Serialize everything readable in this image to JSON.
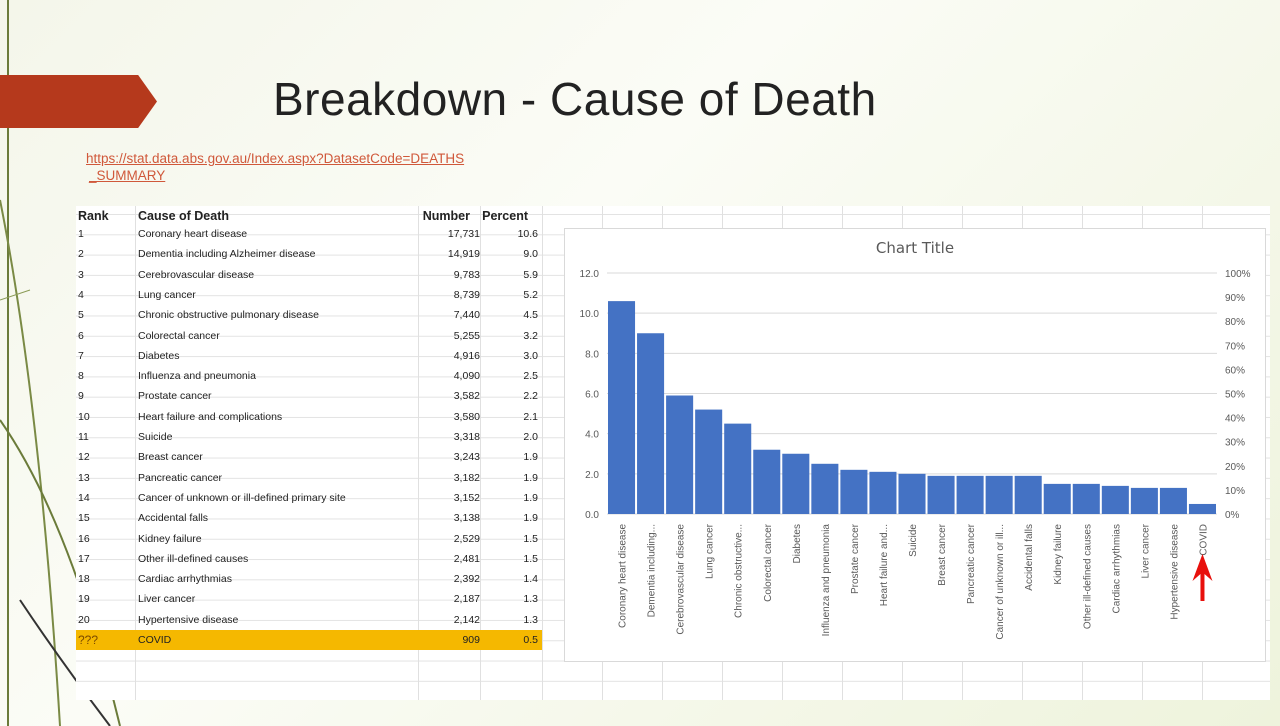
{
  "slide": {
    "title": "Breakdown - Cause of Death",
    "link": "https://stat.data.abs.gov.au/Index.aspx?DatasetCode=DEATHS_SUMMARY",
    "link_line1": "https://stat.data.abs.gov.au/Index.aspx?DatasetCode=DEATHS",
    "link_line2": "_SUMMARY"
  },
  "table": {
    "headers": {
      "rank": "Rank",
      "cause": "Cause of Death",
      "number": "Number",
      "percent": "Percent"
    },
    "rows": [
      {
        "rank": "1",
        "cause": "Coronary heart disease",
        "number": "17,731",
        "percent": "10.6"
      },
      {
        "rank": "2",
        "cause": "Dementia including Alzheimer disease",
        "number": "14,919",
        "percent": "9.0"
      },
      {
        "rank": "3",
        "cause": "Cerebrovascular disease",
        "number": "9,783",
        "percent": "5.9"
      },
      {
        "rank": "4",
        "cause": "Lung cancer",
        "number": "8,739",
        "percent": "5.2"
      },
      {
        "rank": "5",
        "cause": "Chronic obstructive pulmonary disease",
        "number": "7,440",
        "percent": "4.5"
      },
      {
        "rank": "6",
        "cause": "Colorectal cancer",
        "number": "5,255",
        "percent": "3.2"
      },
      {
        "rank": "7",
        "cause": "Diabetes",
        "number": "4,916",
        "percent": "3.0"
      },
      {
        "rank": "8",
        "cause": "Influenza and pneumonia",
        "number": "4,090",
        "percent": "2.5"
      },
      {
        "rank": "9",
        "cause": "Prostate cancer",
        "number": "3,582",
        "percent": "2.2"
      },
      {
        "rank": "10",
        "cause": "Heart failure and complications",
        "number": "3,580",
        "percent": "2.1"
      },
      {
        "rank": "11",
        "cause": "Suicide",
        "number": "3,318",
        "percent": "2.0"
      },
      {
        "rank": "12",
        "cause": "Breast cancer",
        "number": "3,243",
        "percent": "1.9"
      },
      {
        "rank": "13",
        "cause": "Pancreatic cancer",
        "number": "3,182",
        "percent": "1.9"
      },
      {
        "rank": "14",
        "cause": "Cancer of unknown or ill-defined primary site",
        "number": "3,152",
        "percent": "1.9"
      },
      {
        "rank": "15",
        "cause": "Accidental falls",
        "number": "3,138",
        "percent": "1.9"
      },
      {
        "rank": "16",
        "cause": "Kidney failure",
        "number": "2,529",
        "percent": "1.5"
      },
      {
        "rank": "17",
        "cause": "Other ill-defined causes",
        "number": "2,481",
        "percent": "1.5"
      },
      {
        "rank": "18",
        "cause": "Cardiac arrhythmias",
        "number": "2,392",
        "percent": "1.4"
      },
      {
        "rank": "19",
        "cause": "Liver cancer",
        "number": "2,187",
        "percent": "1.3"
      },
      {
        "rank": "20",
        "cause": "Hypertensive disease",
        "number": "2,142",
        "percent": "1.3"
      },
      {
        "rank": "???",
        "cause": "COVID",
        "number": "909",
        "percent": "0.5",
        "highlight": true
      }
    ]
  },
  "chart_data": {
    "type": "bar",
    "title": "Chart Title",
    "categories": [
      "Coronary heart disease",
      "Dementia including...",
      "Cerebrovascular disease",
      "Lung cancer",
      "Chronic obstructive...",
      "Colorectal cancer",
      "Diabetes",
      "Influenza and pneumonia",
      "Prostate cancer",
      "Heart failure and...",
      "Suicide",
      "Breast cancer",
      "Pancreatic cancer",
      "Cancer of unknown or ill...",
      "Accidental falls",
      "Kidney failure",
      "Other ill-defined causes",
      "Cardiac arrhythmias",
      "Liver cancer",
      "Hypertensive disease",
      "COVID"
    ],
    "values": [
      10.6,
      9.0,
      5.9,
      5.2,
      4.5,
      3.2,
      3.0,
      2.5,
      2.2,
      2.1,
      2.0,
      1.9,
      1.9,
      1.9,
      1.9,
      1.5,
      1.5,
      1.4,
      1.3,
      1.3,
      0.5
    ],
    "ylim": [
      0,
      12
    ],
    "yticks": [
      "0.0",
      "2.0",
      "4.0",
      "6.0",
      "8.0",
      "10.0",
      "12.0"
    ],
    "y2lim": [
      0,
      100
    ],
    "y2ticks": [
      "0%",
      "10%",
      "20%",
      "30%",
      "40%",
      "50%",
      "60%",
      "70%",
      "80%",
      "90%",
      "100%"
    ],
    "grid": true,
    "bar_color": "#4472c4",
    "annotation": "red arrow pointing to COVID",
    "arrow_color": "#e8100c"
  }
}
